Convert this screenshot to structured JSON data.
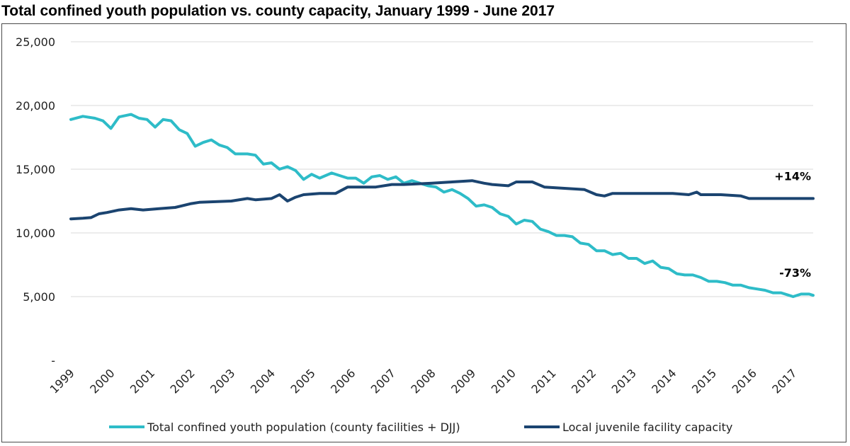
{
  "chart_data": {
    "type": "line",
    "title": "Total confined youth population vs. county capacity, January 1999 - June 2017",
    "y_ticks": [
      "-",
      "5,000",
      "10,000",
      "15,000",
      "20,000",
      "25,000"
    ],
    "y_tick_values": [
      0,
      5000,
      10000,
      15000,
      20000,
      25000
    ],
    "ylim": [
      0,
      25000
    ],
    "xlim": [
      1999,
      2017.5
    ],
    "x_ticks": [
      "1999",
      "2000",
      "2001",
      "2002",
      "2003",
      "2004",
      "2005",
      "2006",
      "2007",
      "2008",
      "2009",
      "2010",
      "2011",
      "2012",
      "2013",
      "2014",
      "2015",
      "2016",
      "2017"
    ],
    "grid": "horizontal",
    "legend_position": "bottom",
    "series": [
      {
        "name": "Total confined youth population (county facilities + DJJ)",
        "color": "#2ebcc8",
        "annotation": "-73%",
        "points": [
          [
            1999.0,
            18900
          ],
          [
            1999.3,
            19150
          ],
          [
            1999.6,
            19000
          ],
          [
            1999.8,
            18800
          ],
          [
            2000.0,
            18200
          ],
          [
            2000.2,
            19100
          ],
          [
            2000.5,
            19300
          ],
          [
            2000.7,
            19000
          ],
          [
            2000.9,
            18900
          ],
          [
            2001.1,
            18300
          ],
          [
            2001.3,
            18900
          ],
          [
            2001.5,
            18800
          ],
          [
            2001.7,
            18100
          ],
          [
            2001.9,
            17800
          ],
          [
            2002.1,
            16800
          ],
          [
            2002.3,
            17100
          ],
          [
            2002.5,
            17300
          ],
          [
            2002.7,
            16900
          ],
          [
            2002.9,
            16700
          ],
          [
            2003.1,
            16200
          ],
          [
            2003.4,
            16200
          ],
          [
            2003.6,
            16100
          ],
          [
            2003.8,
            15400
          ],
          [
            2004.0,
            15500
          ],
          [
            2004.2,
            15000
          ],
          [
            2004.4,
            15200
          ],
          [
            2004.6,
            14900
          ],
          [
            2004.8,
            14200
          ],
          [
            2005.0,
            14600
          ],
          [
            2005.2,
            14300
          ],
          [
            2005.5,
            14700
          ],
          [
            2005.7,
            14500
          ],
          [
            2005.9,
            14300
          ],
          [
            2006.1,
            14300
          ],
          [
            2006.3,
            13900
          ],
          [
            2006.5,
            14400
          ],
          [
            2006.7,
            14500
          ],
          [
            2006.9,
            14200
          ],
          [
            2007.1,
            14400
          ],
          [
            2007.3,
            13900
          ],
          [
            2007.5,
            14100
          ],
          [
            2007.7,
            13900
          ],
          [
            2007.9,
            13700
          ],
          [
            2008.1,
            13600
          ],
          [
            2008.3,
            13200
          ],
          [
            2008.5,
            13400
          ],
          [
            2008.7,
            13100
          ],
          [
            2008.9,
            12700
          ],
          [
            2009.1,
            12100
          ],
          [
            2009.3,
            12200
          ],
          [
            2009.5,
            12000
          ],
          [
            2009.7,
            11500
          ],
          [
            2009.9,
            11300
          ],
          [
            2010.1,
            10700
          ],
          [
            2010.3,
            11000
          ],
          [
            2010.5,
            10900
          ],
          [
            2010.7,
            10300
          ],
          [
            2010.9,
            10100
          ],
          [
            2011.1,
            9800
          ],
          [
            2011.3,
            9800
          ],
          [
            2011.5,
            9700
          ],
          [
            2011.7,
            9200
          ],
          [
            2011.9,
            9100
          ],
          [
            2012.1,
            8600
          ],
          [
            2012.3,
            8600
          ],
          [
            2012.5,
            8300
          ],
          [
            2012.7,
            8400
          ],
          [
            2012.9,
            8000
          ],
          [
            2013.1,
            8000
          ],
          [
            2013.3,
            7600
          ],
          [
            2013.5,
            7800
          ],
          [
            2013.7,
            7300
          ],
          [
            2013.9,
            7200
          ],
          [
            2014.1,
            6800
          ],
          [
            2014.3,
            6700
          ],
          [
            2014.5,
            6700
          ],
          [
            2014.7,
            6500
          ],
          [
            2014.9,
            6200
          ],
          [
            2015.1,
            6200
          ],
          [
            2015.3,
            6100
          ],
          [
            2015.5,
            5900
          ],
          [
            2015.7,
            5900
          ],
          [
            2015.9,
            5700
          ],
          [
            2016.1,
            5600
          ],
          [
            2016.3,
            5500
          ],
          [
            2016.5,
            5300
          ],
          [
            2016.7,
            5300
          ],
          [
            2016.9,
            5100
          ],
          [
            2017.0,
            5000
          ],
          [
            2017.2,
            5200
          ],
          [
            2017.4,
            5200
          ],
          [
            2017.5,
            5100
          ]
        ]
      },
      {
        "name": "Local juvenile facility capacity",
        "color": "#1b4470",
        "annotation": "+14%",
        "points": [
          [
            1999.0,
            11100
          ],
          [
            1999.3,
            11150
          ],
          [
            1999.5,
            11200
          ],
          [
            1999.7,
            11500
          ],
          [
            1999.9,
            11600
          ],
          [
            2000.2,
            11800
          ],
          [
            2000.5,
            11900
          ],
          [
            2000.8,
            11800
          ],
          [
            2001.2,
            11900
          ],
          [
            2001.6,
            12000
          ],
          [
            2002.0,
            12300
          ],
          [
            2002.2,
            12400
          ],
          [
            2003.0,
            12500
          ],
          [
            2003.4,
            12700
          ],
          [
            2003.6,
            12600
          ],
          [
            2004.0,
            12700
          ],
          [
            2004.2,
            13000
          ],
          [
            2004.4,
            12500
          ],
          [
            2004.6,
            12800
          ],
          [
            2004.8,
            13000
          ],
          [
            2005.2,
            13100
          ],
          [
            2005.6,
            13100
          ],
          [
            2005.9,
            13600
          ],
          [
            2006.3,
            13600
          ],
          [
            2006.6,
            13600
          ],
          [
            2007.0,
            13800
          ],
          [
            2007.3,
            13800
          ],
          [
            2008.0,
            13900
          ],
          [
            2008.5,
            14000
          ],
          [
            2009.0,
            14100
          ],
          [
            2009.3,
            13900
          ],
          [
            2009.5,
            13800
          ],
          [
            2009.9,
            13700
          ],
          [
            2010.1,
            14000
          ],
          [
            2010.5,
            14000
          ],
          [
            2010.8,
            13600
          ],
          [
            2011.3,
            13500
          ],
          [
            2011.8,
            13400
          ],
          [
            2012.1,
            13000
          ],
          [
            2012.3,
            12900
          ],
          [
            2012.5,
            13100
          ],
          [
            2013.0,
            13100
          ],
          [
            2013.5,
            13100
          ],
          [
            2014.0,
            13100
          ],
          [
            2014.4,
            13000
          ],
          [
            2014.6,
            13200
          ],
          [
            2014.7,
            13000
          ],
          [
            2015.2,
            13000
          ],
          [
            2015.7,
            12900
          ],
          [
            2015.9,
            12700
          ],
          [
            2016.2,
            12700
          ],
          [
            2016.6,
            12700
          ],
          [
            2017.0,
            12700
          ],
          [
            2017.4,
            12700
          ],
          [
            2017.5,
            12700
          ]
        ]
      }
    ]
  }
}
